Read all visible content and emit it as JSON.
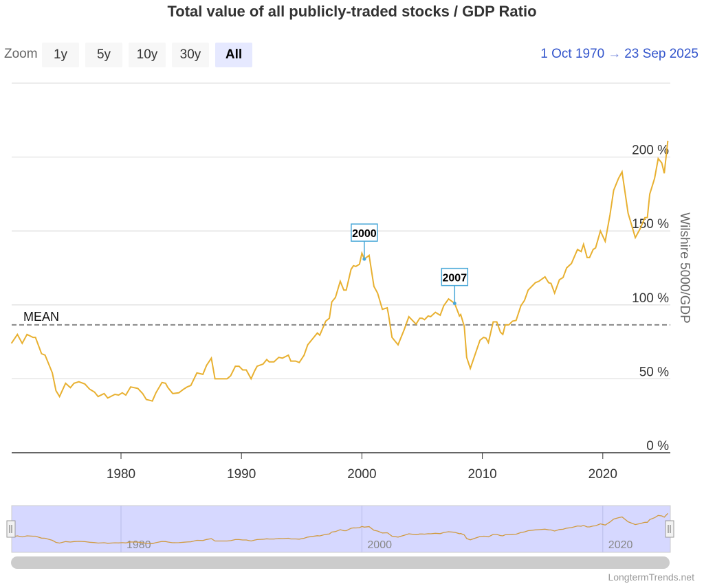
{
  "title": "Total value of all publicly-traded stocks / GDP Ratio",
  "zoom": {
    "label": "Zoom",
    "buttons": [
      "1y",
      "5y",
      "10y",
      "30y",
      "All"
    ],
    "selected": "All"
  },
  "range": {
    "from": "1 Oct 1970",
    "separator": "→",
    "to": "23 Sep 2025"
  },
  "credit": "LongtermTrends.net",
  "colors": {
    "series": "#e8b030",
    "flag": "#4aa8d8",
    "mean": "#888888",
    "navigator_bg": "#d6d8ff"
  },
  "chart_data": {
    "type": "line",
    "title": "Total value of all publicly-traded stocks / GDP Ratio",
    "ylabel": "Wilshire 5000/GDP",
    "xlabel": "",
    "xlim": [
      1970.75,
      2025.73
    ],
    "ylim": [
      0,
      250
    ],
    "x_ticks": [
      "1980",
      "1990",
      "2000",
      "2010",
      "2020"
    ],
    "y_ticks": [
      "0 %",
      "50 %",
      "100 %",
      "150 %",
      "200 %"
    ],
    "grid": true,
    "mean": {
      "label": "MEAN",
      "value": 86.5
    },
    "flags": [
      {
        "label": "2000",
        "x": 2000.2,
        "y": 131
      },
      {
        "label": "2007",
        "x": 2007.7,
        "y": 101
      }
    ],
    "navigator_ticks": [
      "1980",
      "2000",
      "2020"
    ],
    "series": [
      {
        "points": [
          [
            1970.9,
            74
          ],
          [
            1971.4,
            80
          ],
          [
            1971.8,
            74
          ],
          [
            1972.2,
            80
          ],
          [
            1972.7,
            78
          ],
          [
            1972.9,
            78
          ],
          [
            1973.4,
            67
          ],
          [
            1973.7,
            66
          ],
          [
            1974.3,
            54
          ],
          [
            1974.6,
            42
          ],
          [
            1974.9,
            38
          ],
          [
            1975.4,
            47
          ],
          [
            1975.8,
            44
          ],
          [
            1976.1,
            47
          ],
          [
            1976.5,
            48
          ],
          [
            1977,
            46.5
          ],
          [
            1977.4,
            43
          ],
          [
            1977.8,
            41
          ],
          [
            1978.1,
            38
          ],
          [
            1978.6,
            40
          ],
          [
            1978.9,
            37
          ],
          [
            1979.5,
            39.5
          ],
          [
            1979.8,
            39
          ],
          [
            1980.1,
            40.5
          ],
          [
            1980.4,
            39
          ],
          [
            1980.8,
            44.5
          ],
          [
            1981.1,
            44
          ],
          [
            1981.4,
            43.5
          ],
          [
            1981.8,
            40
          ],
          [
            1982.1,
            36
          ],
          [
            1982.6,
            35
          ],
          [
            1982.9,
            40.5
          ],
          [
            1983.4,
            47.5
          ],
          [
            1983.7,
            47
          ],
          [
            1983.9,
            44
          ],
          [
            1984.3,
            40
          ],
          [
            1984.8,
            40.5
          ],
          [
            1985.2,
            43
          ],
          [
            1985.5,
            44.5
          ],
          [
            1985.8,
            45.5
          ],
          [
            1986.3,
            54
          ],
          [
            1986.8,
            53
          ],
          [
            1987.1,
            59
          ],
          [
            1987.5,
            64
          ],
          [
            1987.8,
            50
          ],
          [
            1988.2,
            50
          ],
          [
            1988.8,
            50
          ],
          [
            1989.1,
            52
          ],
          [
            1989.5,
            58.5
          ],
          [
            1989.8,
            58.5
          ],
          [
            1990.1,
            56
          ],
          [
            1990.4,
            56
          ],
          [
            1990.8,
            50
          ],
          [
            1991.1,
            55.5
          ],
          [
            1991.3,
            58.5
          ],
          [
            1991.8,
            60
          ],
          [
            1992.1,
            63
          ],
          [
            1992.3,
            61.5
          ],
          [
            1992.7,
            61.5
          ],
          [
            1993.1,
            64.5
          ],
          [
            1993.4,
            64
          ],
          [
            1993.9,
            66
          ],
          [
            1994.1,
            62
          ],
          [
            1994.5,
            62
          ],
          [
            1994.8,
            61
          ],
          [
            1995.2,
            66
          ],
          [
            1995.5,
            73
          ],
          [
            1996.3,
            81
          ],
          [
            1996.5,
            79.5
          ],
          [
            1997,
            89
          ],
          [
            1997.3,
            91
          ],
          [
            1997.5,
            102
          ],
          [
            1997.8,
            105
          ],
          [
            1998.2,
            116
          ],
          [
            1998.5,
            110
          ],
          [
            1998.7,
            110
          ],
          [
            1999.1,
            124
          ],
          [
            1999.3,
            126.5
          ],
          [
            1999.5,
            126
          ],
          [
            1999.8,
            127.5
          ],
          [
            2000,
            135
          ],
          [
            2000.2,
            131
          ],
          [
            2000.6,
            133.5
          ],
          [
            2001,
            112.5
          ],
          [
            2001.3,
            108
          ],
          [
            2001.7,
            97
          ],
          [
            2002.1,
            98
          ],
          [
            2002.2,
            94
          ],
          [
            2002.5,
            78
          ],
          [
            2003,
            73
          ],
          [
            2003.5,
            83
          ],
          [
            2003.9,
            92
          ],
          [
            2004.5,
            87
          ],
          [
            2004.8,
            91
          ],
          [
            2005,
            91
          ],
          [
            2005.2,
            90
          ],
          [
            2005.5,
            92.5
          ],
          [
            2005.7,
            92
          ],
          [
            2006.1,
            95
          ],
          [
            2006.5,
            93
          ],
          [
            2006.8,
            99.5
          ],
          [
            2007.2,
            104
          ],
          [
            2007.7,
            101
          ],
          [
            2008.1,
            92.5
          ],
          [
            2008.2,
            93.5
          ],
          [
            2008.5,
            85.5
          ],
          [
            2008.7,
            64.5
          ],
          [
            2009,
            57
          ],
          [
            2009.8,
            76
          ],
          [
            2010.1,
            78
          ],
          [
            2010.3,
            77.5
          ],
          [
            2010.5,
            74.5
          ],
          [
            2010.9,
            88.5
          ],
          [
            2011.2,
            88.5
          ],
          [
            2011.5,
            81.5
          ],
          [
            2011.7,
            80
          ],
          [
            2011.9,
            86.5
          ],
          [
            2012.2,
            86.5
          ],
          [
            2012.5,
            89
          ],
          [
            2012.8,
            89.5
          ],
          [
            2013.2,
            99.5
          ],
          [
            2013.5,
            103
          ],
          [
            2013.8,
            110
          ],
          [
            2014.4,
            115
          ],
          [
            2014.7,
            116
          ],
          [
            2015.2,
            119
          ],
          [
            2015.5,
            115
          ],
          [
            2015.7,
            114.5
          ],
          [
            2016,
            108
          ],
          [
            2016.4,
            117
          ],
          [
            2016.7,
            118.5
          ],
          [
            2017,
            125
          ],
          [
            2017.4,
            128
          ],
          [
            2017.9,
            137.5
          ],
          [
            2018.2,
            136
          ],
          [
            2018.4,
            141
          ],
          [
            2018.7,
            132
          ],
          [
            2018.9,
            132
          ],
          [
            2019.2,
            137.5
          ],
          [
            2019.4,
            138.5
          ],
          [
            2019.8,
            150
          ],
          [
            2020.2,
            143
          ],
          [
            2020.6,
            161
          ],
          [
            2020.9,
            177.5
          ],
          [
            2021.3,
            185.5
          ],
          [
            2021.6,
            190
          ],
          [
            2022.1,
            162
          ],
          [
            2022.7,
            145.5
          ],
          [
            2023.1,
            151.5
          ],
          [
            2023.5,
            159
          ],
          [
            2023.7,
            159
          ],
          [
            2023.9,
            175
          ],
          [
            2024.3,
            185.5
          ],
          [
            2024.6,
            199
          ],
          [
            2024.9,
            196
          ],
          [
            2025.1,
            189
          ],
          [
            2025.4,
            211
          ]
        ]
      }
    ]
  }
}
